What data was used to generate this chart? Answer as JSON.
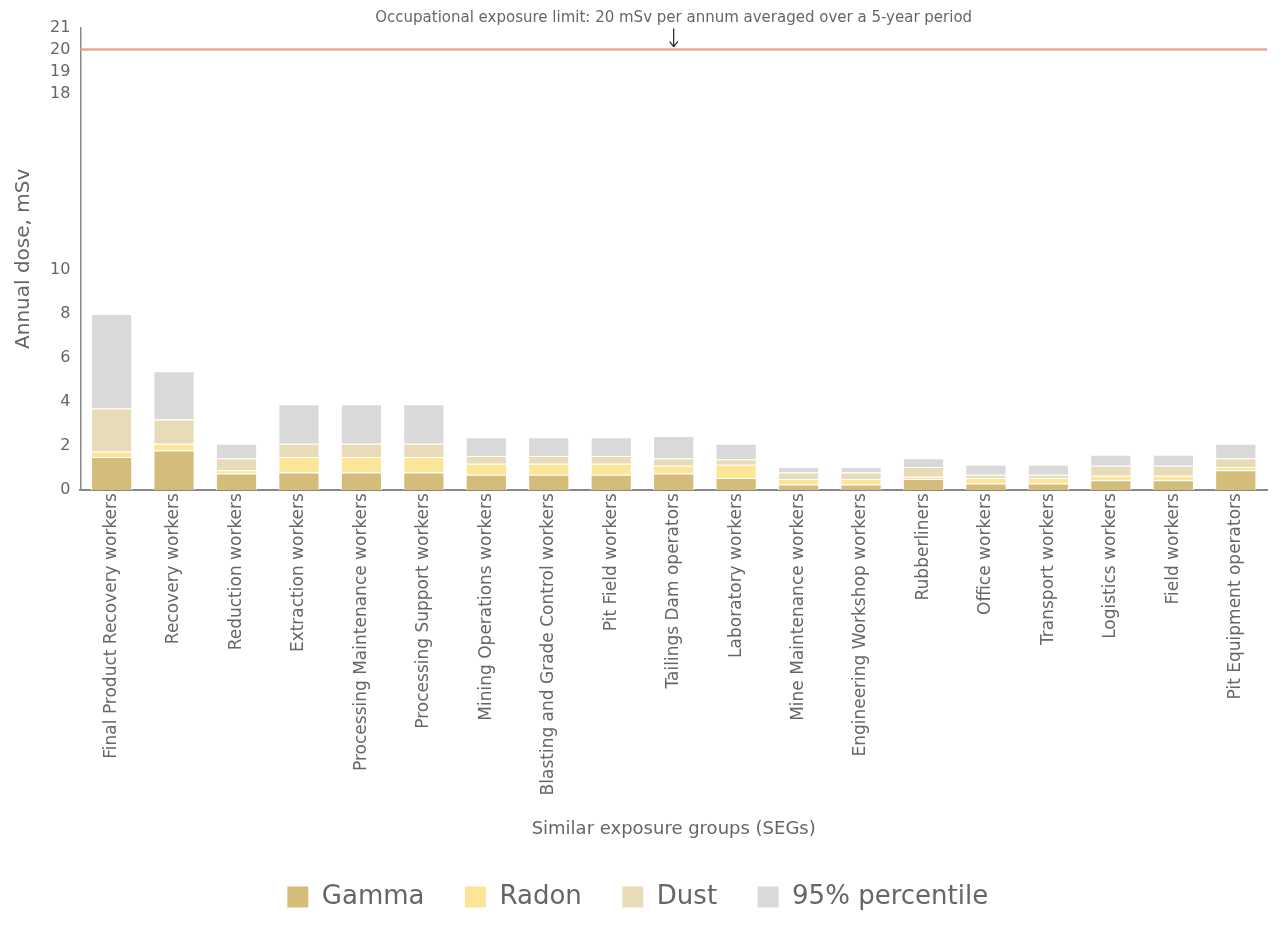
{
  "chart_data": {
    "type": "bar",
    "stacked": true,
    "xlabel": "Similar exposure groups (SEGs)",
    "ylabel": "Annual dose, mSv",
    "categories": [
      "Final Product Recovery workers",
      "Recovery workers",
      "Reduction workers",
      "Extraction workers",
      "Processing Maintenance workers",
      "Processing Support workers",
      "Mining Operations workers",
      "Blasting and Grade Control workers",
      "Pit Field workers",
      "Tailings Dam operators",
      "Laboratory workers",
      "Mine Maintenance workers",
      "Engineering Workshop workers",
      "Rubberliners",
      "Office workers",
      "Transport workers",
      "Logistics workers",
      "Field workers",
      "Pit Equipment operators"
    ],
    "series": [
      {
        "name": "Gamma",
        "color": "#d4bc7a",
        "values": [
          1.5,
          1.8,
          0.75,
          0.8,
          0.8,
          0.8,
          0.7,
          0.7,
          0.7,
          0.75,
          0.55,
          0.25,
          0.25,
          0.5,
          0.3,
          0.3,
          0.45,
          0.45,
          0.9
        ]
      },
      {
        "name": "Radon",
        "color": "#fde598",
        "values": [
          0.25,
          0.3,
          0.15,
          0.7,
          0.7,
          0.7,
          0.5,
          0.5,
          0.5,
          0.35,
          0.6,
          0.25,
          0.25,
          0.1,
          0.25,
          0.25,
          0.2,
          0.2,
          0.15
        ]
      },
      {
        "name": "Dust",
        "color": "#e8dcb8",
        "values": [
          1.95,
          1.1,
          0.55,
          0.6,
          0.6,
          0.6,
          0.35,
          0.35,
          0.35,
          0.35,
          0.25,
          0.3,
          0.3,
          0.45,
          0.15,
          0.15,
          0.45,
          0.45,
          0.4
        ]
      },
      {
        "name": "95% percentile",
        "color": "#d9d9d9",
        "values": [
          4.3,
          2.2,
          0.65,
          1.8,
          1.8,
          1.8,
          0.85,
          0.85,
          0.85,
          1.0,
          0.7,
          0.25,
          0.25,
          0.4,
          0.45,
          0.45,
          0.5,
          0.5,
          0.65
        ]
      }
    ],
    "ylim": [
      0,
      21
    ],
    "yticks": [
      0,
      2,
      4,
      6,
      8,
      10,
      18,
      19,
      20,
      21
    ],
    "grid": false,
    "legend": "bottom",
    "ref_lines": [
      {
        "axis": "y",
        "value": 20,
        "label": "Occupational exposure limit: 20 mSv per annum averaged over a 5-year period",
        "color": "#e8a892"
      }
    ]
  }
}
